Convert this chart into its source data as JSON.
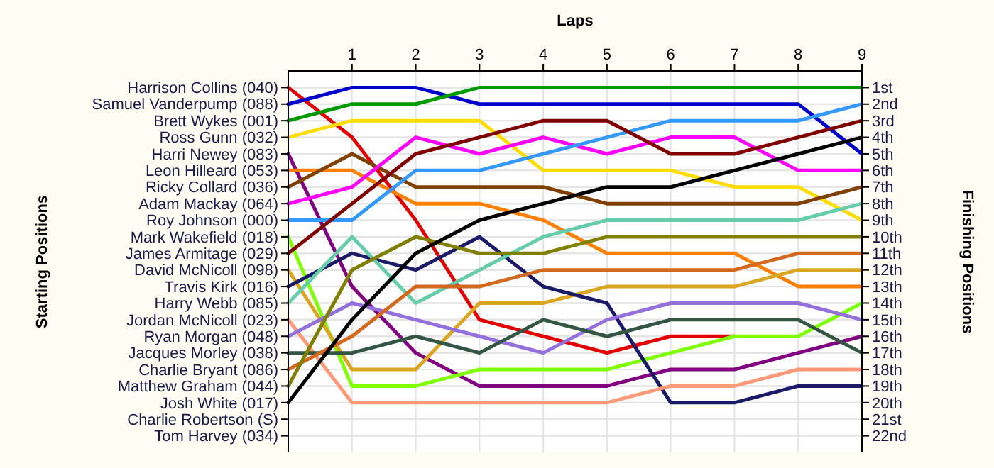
{
  "chart_data": {
    "type": "line",
    "xlabel": "Laps",
    "ylabel": "Finishing Positions",
    "annotations": [
      "Starting Positions"
    ],
    "x": [
      0,
      1,
      2,
      3,
      4,
      5,
      6,
      7,
      8,
      9
    ],
    "xlim": [
      0,
      9
    ],
    "xticks": [
      1,
      2,
      3,
      4,
      5,
      6,
      7,
      8,
      9
    ],
    "y_categories": [
      "Harrison Collins (040)",
      "Samuel Vanderpump (088)",
      "Brett Wykes (001)",
      "Ross Gunn (032)",
      "Harri Newey (083)",
      "Leon Hilleard (053)",
      "Ricky Collard (036)",
      "Adam Mackay (064)",
      "Roy Johnson (000)",
      "Mark Wakefield (018)",
      "James Armitage (029)",
      "David McNicoll (098)",
      "Travis Kirk (016)",
      "Harry Webb (085)",
      "Jordan McNicoll (023)",
      "Ryan Morgan (048)",
      "Jacques Morley (038)",
      "Charlie Bryant (086)",
      "Matthew Graham (044)",
      "Josh White (017)",
      "Charlie Robertson (S)",
      "Tom Harvey (034)"
    ],
    "ylim": [
      23,
      0
    ],
    "yticks": [
      {
        "value": 1,
        "label": "1st"
      },
      {
        "value": 2,
        "label": "2nd"
      },
      {
        "value": 3,
        "label": "3rd"
      },
      {
        "value": 4,
        "label": "4th"
      },
      {
        "value": 5,
        "label": "5th"
      },
      {
        "value": 6,
        "label": "6th"
      },
      {
        "value": 7,
        "label": "7th"
      },
      {
        "value": 8,
        "label": "8th"
      },
      {
        "value": 9,
        "label": "9th"
      },
      {
        "value": 10,
        "label": "10th"
      },
      {
        "value": 11,
        "label": "11th"
      },
      {
        "value": 12,
        "label": "12th"
      },
      {
        "value": 13,
        "label": "13th"
      },
      {
        "value": 14,
        "label": "14th"
      },
      {
        "value": 15,
        "label": "15th"
      },
      {
        "value": 16,
        "label": "16th"
      },
      {
        "value": 17,
        "label": "17th"
      },
      {
        "value": 18,
        "label": "18th"
      },
      {
        "value": 19,
        "label": "19th"
      },
      {
        "value": 20,
        "label": "20th"
      },
      {
        "value": 21,
        "label": "21st"
      },
      {
        "value": 22,
        "label": "22nd"
      }
    ],
    "grid": true,
    "marker": "none",
    "line_style": "solid",
    "series": [
      {
        "color": "#e00000",
        "values": [
          1,
          4,
          9,
          15,
          16,
          17,
          16,
          16,
          null,
          null
        ]
      },
      {
        "color": "#0000cc",
        "values": [
          2,
          1,
          1,
          2,
          2,
          2,
          2,
          2,
          2,
          5
        ]
      },
      {
        "color": "#009900",
        "values": [
          3,
          2,
          2,
          1,
          1,
          1,
          1,
          1,
          1,
          1
        ]
      },
      {
        "color": "#ffdd00",
        "values": [
          4,
          3,
          3,
          3,
          6,
          6,
          6,
          7,
          7,
          9
        ]
      },
      {
        "color": "#800080",
        "values": [
          5,
          13,
          17,
          19,
          19,
          19,
          18,
          18,
          17,
          16
        ]
      },
      {
        "color": "#ff8000",
        "values": [
          6,
          6,
          8,
          8,
          9,
          11,
          11,
          11,
          13,
          13
        ]
      },
      {
        "color": "#804000",
        "values": [
          7,
          5,
          7,
          7,
          7,
          8,
          8,
          8,
          8,
          7
        ]
      },
      {
        "color": "#ff00ff",
        "values": [
          8,
          7,
          4,
          5,
          4,
          5,
          4,
          4,
          6,
          6
        ]
      },
      {
        "color": "#3399ff",
        "values": [
          9,
          9,
          6,
          6,
          5,
          4,
          3,
          3,
          3,
          2
        ]
      },
      {
        "color": "#80ff00",
        "values": [
          10,
          19,
          19,
          18,
          18,
          18,
          17,
          16,
          16,
          14
        ]
      },
      {
        "color": "#800000",
        "values": [
          11,
          8,
          5,
          4,
          3,
          3,
          5,
          5,
          4,
          3
        ]
      },
      {
        "color": "#daa520",
        "values": [
          12,
          18,
          18,
          14,
          14,
          13,
          13,
          13,
          12,
          12
        ]
      },
      {
        "color": "#1a1a66",
        "values": [
          13,
          11,
          12,
          10,
          13,
          14,
          20,
          20,
          19,
          19
        ]
      },
      {
        "color": "#66ccaa",
        "values": [
          14,
          10,
          14,
          12,
          10,
          9,
          9,
          9,
          9,
          8
        ]
      },
      {
        "color": "#ff9977",
        "values": [
          15,
          20,
          20,
          20,
          20,
          20,
          19,
          19,
          18,
          18
        ]
      },
      {
        "color": "#9370db",
        "values": [
          16,
          14,
          15,
          16,
          17,
          15,
          14,
          14,
          14,
          15
        ]
      },
      {
        "color": "#335544",
        "values": [
          17,
          17,
          16,
          17,
          15,
          16,
          15,
          15,
          15,
          17
        ]
      },
      {
        "color": "#d2691e",
        "values": [
          18,
          16,
          13,
          13,
          12,
          12,
          12,
          12,
          11,
          11
        ]
      },
      {
        "color": "#808000",
        "values": [
          19,
          12,
          10,
          11,
          11,
          10,
          10,
          10,
          10,
          10
        ]
      },
      {
        "color": "#000000",
        "values": [
          20,
          15,
          11,
          9,
          8,
          7,
          7,
          6,
          5,
          4
        ]
      }
    ]
  }
}
